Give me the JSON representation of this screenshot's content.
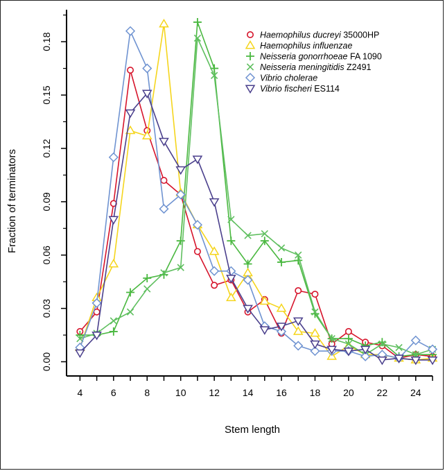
{
  "chart_data": {
    "type": "line",
    "xlabel": "Stem length",
    "ylabel": "Fraction of terminators",
    "xlim": [
      3.2,
      25
    ],
    "ylim": [
      -0.008,
      0.198
    ],
    "x_ticks": [
      "4",
      "6",
      "8",
      "10",
      "12",
      "14",
      "16",
      "18",
      "20",
      "22",
      "24"
    ],
    "y_ticks": [
      "0.00",
      "0.03",
      "0.06",
      "0.09",
      "0.12",
      "0.15",
      "0.18"
    ],
    "x": [
      4,
      5,
      6,
      7,
      8,
      9,
      10,
      11,
      12,
      13,
      14,
      15,
      16,
      17,
      18,
      19,
      20,
      21,
      22,
      23,
      24,
      25
    ],
    "legend_position": "top-right",
    "series": [
      {
        "name": "Haemophilus ducreyi 35000HP",
        "name_italic": "Haemophilus ducreyi",
        "name_plain": " 35000HP",
        "color": "#d6142b",
        "marker": "circle",
        "values": [
          0.017,
          0.028,
          0.089,
          0.164,
          0.13,
          0.102,
          0.094,
          0.062,
          0.043,
          0.046,
          0.028,
          0.035,
          0.016,
          0.04,
          0.038,
          0.01,
          0.017,
          0.011,
          0.009,
          0.002,
          0.004,
          0.003
        ]
      },
      {
        "name": "Haemophilus influenzae",
        "name_italic": "Haemophilus influenzae",
        "name_plain": "",
        "color": "#f5d51c",
        "marker": "triangle",
        "values": [
          0.008,
          0.036,
          0.055,
          0.13,
          0.127,
          0.19,
          0.095,
          0.077,
          0.062,
          0.036,
          0.05,
          0.034,
          0.03,
          0.017,
          0.016,
          0.003,
          0.009,
          0.004,
          0.004,
          0.002,
          0.001,
          0.002
        ]
      },
      {
        "name": "Neisseria gonorrhoeae FA 1090",
        "name_italic": "Neisseria gonorrhoeae",
        "name_plain": " FA 1090",
        "color": "#4ab840",
        "marker": "plus",
        "values": [
          0.015,
          0.015,
          0.017,
          0.039,
          0.047,
          0.049,
          0.068,
          0.191,
          0.165,
          0.068,
          0.055,
          0.068,
          0.056,
          0.057,
          0.027,
          0.013,
          0.013,
          0.009,
          0.011,
          0.003,
          0.004,
          0.004
        ]
      },
      {
        "name": "Neisseria meningitidis Z2491",
        "name_italic": "Neisseria meningitidis",
        "name_plain": " Z2491",
        "color": "#5fbf5f",
        "marker": "cross",
        "values": [
          0.013,
          0.016,
          0.023,
          0.028,
          0.041,
          0.05,
          0.053,
          0.182,
          0.161,
          0.08,
          0.071,
          0.072,
          0.064,
          0.06,
          0.028,
          0.013,
          0.01,
          0.004,
          0.01,
          0.008,
          0.004,
          0.007
        ]
      },
      {
        "name": "Vibrio cholerae",
        "name_italic": "Vibrio cholerae",
        "name_plain": "",
        "color": "#6f93d1",
        "marker": "diamond",
        "values": [
          0.008,
          0.033,
          0.115,
          0.186,
          0.165,
          0.086,
          0.094,
          0.077,
          0.051,
          0.051,
          0.046,
          0.02,
          0.017,
          0.009,
          0.006,
          0.006,
          0.006,
          0.003,
          0.004,
          0.002,
          0.012,
          0.007
        ]
      },
      {
        "name": "Vibrio fischeri ES114",
        "name_italic": "Vibrio fischeri",
        "name_plain": " ES114",
        "color": "#4a3f8c",
        "marker": "triangle-down",
        "values": [
          0.005,
          0.015,
          0.08,
          0.14,
          0.151,
          0.124,
          0.108,
          0.114,
          0.09,
          0.047,
          0.03,
          0.018,
          0.02,
          0.023,
          0.01,
          0.007,
          0.006,
          0.007,
          0.001,
          0.002,
          0.001,
          0.001
        ]
      }
    ]
  }
}
